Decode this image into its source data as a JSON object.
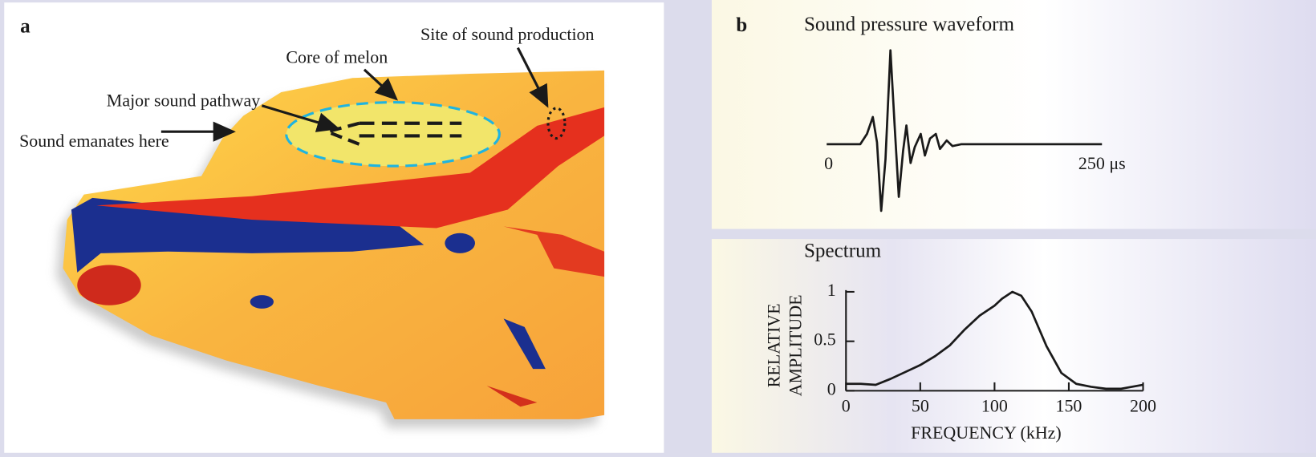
{
  "panel_a": {
    "label": "a",
    "annotations": [
      "Site of sound production",
      "Core of melon",
      "Major sound pathway",
      "Sound emanates here"
    ]
  },
  "panel_b": {
    "label": "b"
  },
  "chart_data": [
    {
      "type": "line",
      "title": "Sound pressure waveform",
      "x": [
        0,
        30.5,
        36.6,
        41.9,
        45.7,
        49.5,
        53.4,
        57.9,
        61.7,
        65.5,
        69.4,
        72.4,
        76.2,
        80,
        85.4,
        89.2,
        93.8,
        99.1,
        102.9,
        109,
        114.3,
        122,
        250
      ],
      "values": [
        0,
        0,
        0.11,
        0.29,
        0.02,
        -0.71,
        -0.16,
        1,
        0.2,
        -0.56,
        -0.07,
        0.2,
        -0.2,
        -0.03,
        0.11,
        -0.12,
        0.06,
        0.11,
        -0.05,
        0.04,
        -0.02,
        0,
        0
      ],
      "xlim": [
        0,
        250
      ],
      "ylim": [
        -1,
        1
      ],
      "xticks": [
        0,
        {
          "value": 250,
          "label": "250 μs"
        }
      ],
      "color": "#1a1a1a"
    },
    {
      "type": "line",
      "title": "Spectrum",
      "x": [
        0,
        10,
        20,
        30,
        40,
        50,
        60,
        70,
        80,
        90,
        100,
        105,
        112,
        118,
        125,
        135,
        145,
        155,
        165,
        175,
        185,
        200
      ],
      "values": [
        0.07,
        0.07,
        0.06,
        0.12,
        0.19,
        0.26,
        0.35,
        0.46,
        0.62,
        0.76,
        0.86,
        0.93,
        1,
        0.96,
        0.8,
        0.45,
        0.18,
        0.07,
        0.04,
        0.02,
        0.02,
        0.06
      ],
      "xlim": [
        0,
        200
      ],
      "ylim": [
        0,
        1
      ],
      "xticks": [
        0,
        50,
        100,
        150,
        200
      ],
      "yticks": [
        0,
        0.5,
        1
      ],
      "xlabel": "FREQUENCY (kHz)",
      "ylabel": [
        "RELATIVE",
        "AMPLITUDE"
      ],
      "color": "#1a1a1a"
    }
  ]
}
